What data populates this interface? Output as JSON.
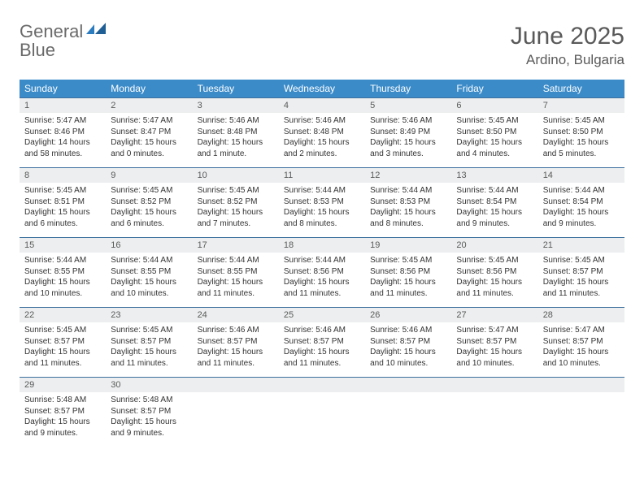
{
  "brand": {
    "part1": "General",
    "part2": "Blue"
  },
  "title": "June 2025",
  "location": "Ardino, Bulgaria",
  "colors": {
    "header_bg": "#3b8bc9",
    "header_border": "#3b6f9e",
    "daynum_bg": "#eceeef",
    "text_gray": "#5a5a5a",
    "brand_gray": "#6a6a6a",
    "brand_blue": "#2b7bbf"
  },
  "day_names": [
    "Sunday",
    "Monday",
    "Tuesday",
    "Wednesday",
    "Thursday",
    "Friday",
    "Saturday"
  ],
  "weeks": [
    {
      "nums": [
        "1",
        "2",
        "3",
        "4",
        "5",
        "6",
        "7"
      ],
      "cells": [
        [
          "Sunrise: 5:47 AM",
          "Sunset: 8:46 PM",
          "Daylight: 14 hours",
          "and 58 minutes."
        ],
        [
          "Sunrise: 5:47 AM",
          "Sunset: 8:47 PM",
          "Daylight: 15 hours",
          "and 0 minutes."
        ],
        [
          "Sunrise: 5:46 AM",
          "Sunset: 8:48 PM",
          "Daylight: 15 hours",
          "and 1 minute."
        ],
        [
          "Sunrise: 5:46 AM",
          "Sunset: 8:48 PM",
          "Daylight: 15 hours",
          "and 2 minutes."
        ],
        [
          "Sunrise: 5:46 AM",
          "Sunset: 8:49 PM",
          "Daylight: 15 hours",
          "and 3 minutes."
        ],
        [
          "Sunrise: 5:45 AM",
          "Sunset: 8:50 PM",
          "Daylight: 15 hours",
          "and 4 minutes."
        ],
        [
          "Sunrise: 5:45 AM",
          "Sunset: 8:50 PM",
          "Daylight: 15 hours",
          "and 5 minutes."
        ]
      ]
    },
    {
      "nums": [
        "8",
        "9",
        "10",
        "11",
        "12",
        "13",
        "14"
      ],
      "cells": [
        [
          "Sunrise: 5:45 AM",
          "Sunset: 8:51 PM",
          "Daylight: 15 hours",
          "and 6 minutes."
        ],
        [
          "Sunrise: 5:45 AM",
          "Sunset: 8:52 PM",
          "Daylight: 15 hours",
          "and 6 minutes."
        ],
        [
          "Sunrise: 5:45 AM",
          "Sunset: 8:52 PM",
          "Daylight: 15 hours",
          "and 7 minutes."
        ],
        [
          "Sunrise: 5:44 AM",
          "Sunset: 8:53 PM",
          "Daylight: 15 hours",
          "and 8 minutes."
        ],
        [
          "Sunrise: 5:44 AM",
          "Sunset: 8:53 PM",
          "Daylight: 15 hours",
          "and 8 minutes."
        ],
        [
          "Sunrise: 5:44 AM",
          "Sunset: 8:54 PM",
          "Daylight: 15 hours",
          "and 9 minutes."
        ],
        [
          "Sunrise: 5:44 AM",
          "Sunset: 8:54 PM",
          "Daylight: 15 hours",
          "and 9 minutes."
        ]
      ]
    },
    {
      "nums": [
        "15",
        "16",
        "17",
        "18",
        "19",
        "20",
        "21"
      ],
      "cells": [
        [
          "Sunrise: 5:44 AM",
          "Sunset: 8:55 PM",
          "Daylight: 15 hours",
          "and 10 minutes."
        ],
        [
          "Sunrise: 5:44 AM",
          "Sunset: 8:55 PM",
          "Daylight: 15 hours",
          "and 10 minutes."
        ],
        [
          "Sunrise: 5:44 AM",
          "Sunset: 8:55 PM",
          "Daylight: 15 hours",
          "and 11 minutes."
        ],
        [
          "Sunrise: 5:44 AM",
          "Sunset: 8:56 PM",
          "Daylight: 15 hours",
          "and 11 minutes."
        ],
        [
          "Sunrise: 5:45 AM",
          "Sunset: 8:56 PM",
          "Daylight: 15 hours",
          "and 11 minutes."
        ],
        [
          "Sunrise: 5:45 AM",
          "Sunset: 8:56 PM",
          "Daylight: 15 hours",
          "and 11 minutes."
        ],
        [
          "Sunrise: 5:45 AM",
          "Sunset: 8:57 PM",
          "Daylight: 15 hours",
          "and 11 minutes."
        ]
      ]
    },
    {
      "nums": [
        "22",
        "23",
        "24",
        "25",
        "26",
        "27",
        "28"
      ],
      "cells": [
        [
          "Sunrise: 5:45 AM",
          "Sunset: 8:57 PM",
          "Daylight: 15 hours",
          "and 11 minutes."
        ],
        [
          "Sunrise: 5:45 AM",
          "Sunset: 8:57 PM",
          "Daylight: 15 hours",
          "and 11 minutes."
        ],
        [
          "Sunrise: 5:46 AM",
          "Sunset: 8:57 PM",
          "Daylight: 15 hours",
          "and 11 minutes."
        ],
        [
          "Sunrise: 5:46 AM",
          "Sunset: 8:57 PM",
          "Daylight: 15 hours",
          "and 11 minutes."
        ],
        [
          "Sunrise: 5:46 AM",
          "Sunset: 8:57 PM",
          "Daylight: 15 hours",
          "and 10 minutes."
        ],
        [
          "Sunrise: 5:47 AM",
          "Sunset: 8:57 PM",
          "Daylight: 15 hours",
          "and 10 minutes."
        ],
        [
          "Sunrise: 5:47 AM",
          "Sunset: 8:57 PM",
          "Daylight: 15 hours",
          "and 10 minutes."
        ]
      ]
    },
    {
      "nums": [
        "29",
        "30",
        "",
        "",
        "",
        "",
        ""
      ],
      "cells": [
        [
          "Sunrise: 5:48 AM",
          "Sunset: 8:57 PM",
          "Daylight: 15 hours",
          "and 9 minutes."
        ],
        [
          "Sunrise: 5:48 AM",
          "Sunset: 8:57 PM",
          "Daylight: 15 hours",
          "and 9 minutes."
        ],
        [],
        [],
        [],
        [],
        []
      ]
    }
  ]
}
